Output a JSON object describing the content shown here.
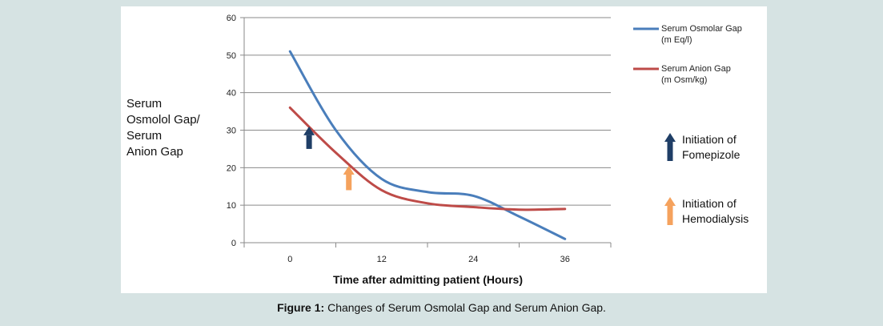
{
  "chart_data": {
    "type": "line",
    "ylabel_lines": [
      "Serum",
      "Osmolol Gap/",
      "Serum",
      "Anion Gap"
    ],
    "xlabel": "Time after admitting patient (Hours)",
    "x_ticks": [
      "0",
      "12",
      "24",
      "36"
    ],
    "y_ticks": [
      "0",
      "10",
      "20",
      "30",
      "40",
      "50",
      "60"
    ],
    "ylim": [
      0,
      60
    ],
    "xlim": [
      -6,
      42
    ],
    "grid": true,
    "legend_position": "top-right",
    "series": [
      {
        "name_lines": [
          "Serum Osmolar Gap",
          "(m Eq/l)"
        ],
        "color": "#4a7ebb",
        "x": [
          0,
          6,
          12,
          18,
          24,
          30,
          36
        ],
        "y": [
          51,
          30,
          17,
          13.5,
          12.5,
          7,
          1
        ]
      },
      {
        "name_lines": [
          "Serum Anion Gap",
          "(m Osm/kg)"
        ],
        "color": "#be4b48",
        "x": [
          0,
          6,
          12,
          18,
          24,
          30,
          36
        ],
        "y": [
          36,
          24,
          14,
          10.5,
          9.5,
          8.8,
          9
        ]
      }
    ],
    "annotations": [
      {
        "label_lines": [
          "Initiation of",
          "Fomepizole"
        ],
        "color": "#1f3e66",
        "x": 2.5,
        "y_base": 25,
        "y_top": 31
      },
      {
        "label_lines": [
          "Initiation of",
          "Hemodialysis"
        ],
        "color": "#f5a25d",
        "x": 7.7,
        "y_base": 14,
        "y_top": 20.5
      }
    ]
  },
  "caption": {
    "label": "Figure 1:",
    "text": " Changes of Serum Osmolal Gap and Serum Anion Gap."
  }
}
